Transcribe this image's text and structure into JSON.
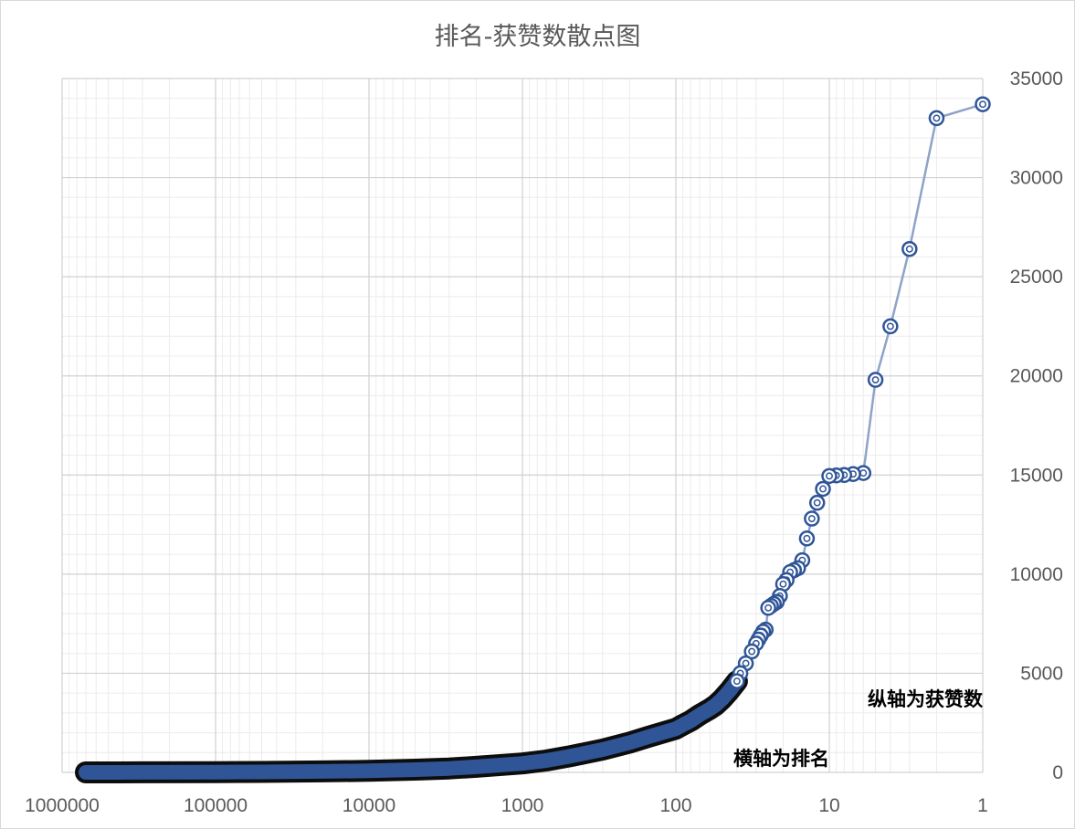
{
  "chart_data": {
    "type": "scatter",
    "title": "排名-获赞数散点图",
    "xscale": "log",
    "x_reversed": true,
    "xlim": [
      1000000,
      1
    ],
    "ylim": [
      0,
      35000
    ],
    "x_ticks": [
      "1000000",
      "100000",
      "10000",
      "1000",
      "100",
      "10",
      "1"
    ],
    "y_ticks": [
      "0",
      "5000",
      "10000",
      "15000",
      "20000",
      "25000",
      "30000",
      "35000"
    ],
    "y_axis_position": "right",
    "grid": true,
    "marker_color": "#2f5597",
    "line_color": "#8ea3c8",
    "annotations": {
      "y_note": "纵轴为获赞数",
      "x_note": "横轴为排名"
    },
    "series": [
      {
        "x": [
          1,
          2,
          3,
          4,
          5,
          6,
          7,
          8,
          9,
          10,
          11,
          12,
          13,
          14,
          15,
          16,
          17,
          18,
          19,
          20,
          21,
          22,
          23,
          24,
          25,
          26,
          27,
          28,
          29,
          30,
          32,
          35,
          38,
          40,
          45,
          50,
          55,
          60,
          70,
          80,
          90,
          100,
          150,
          200,
          300,
          500,
          700,
          1000,
          2000,
          3000,
          5000,
          10000,
          20000,
          50000,
          100000,
          300000,
          700000
        ],
        "y": [
          33700,
          33000,
          26400,
          22500,
          19800,
          15100,
          15050,
          15000,
          14980,
          14950,
          14300,
          13600,
          12800,
          11800,
          10700,
          10300,
          10200,
          10100,
          9700,
          9500,
          8900,
          8600,
          8500,
          8400,
          8300,
          7200,
          7100,
          6900,
          6700,
          6500,
          6100,
          5500,
          5000,
          4600,
          4100,
          3700,
          3400,
          3200,
          2900,
          2600,
          2400,
          2200,
          1800,
          1500,
          1150,
          800,
          600,
          450,
          280,
          200,
          140,
          80,
          50,
          25,
          15,
          5,
          0
        ]
      }
    ]
  }
}
